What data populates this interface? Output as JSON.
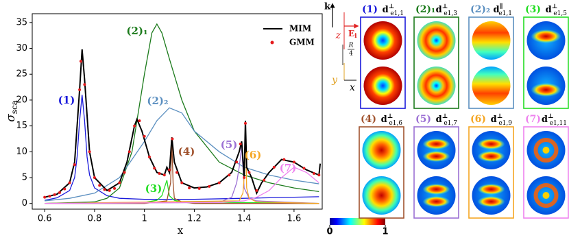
{
  "chart_data": {
    "type": "line",
    "xlabel": "x",
    "ylabel": {
      "symbol": "σ",
      "sub": "sca"
    },
    "xlim": [
      0.55,
      1.713
    ],
    "ylim": [
      -1.1,
      36.7
    ],
    "xticks": [
      0.6,
      0.8,
      1.0,
      1.2,
      1.4,
      1.6
    ],
    "yticks": [
      0,
      5,
      10,
      15,
      20,
      25,
      30,
      35
    ],
    "legend": "upper right",
    "series": [
      {
        "name": "(1)",
        "color": "#1a1adb",
        "mode": "lines",
        "x": [
          0.6,
          0.65,
          0.7,
          0.72,
          0.73,
          0.74,
          0.75,
          0.76,
          0.77,
          0.78,
          0.8,
          0.85,
          0.9,
          1.0,
          1.1,
          1.2,
          1.4,
          1.7
        ],
        "values": [
          0.6,
          1.1,
          2.5,
          5,
          9,
          16,
          21,
          16,
          9,
          5.5,
          3,
          1.5,
          1,
          0.8,
          0.8,
          0.8,
          1,
          1.3
        ]
      },
      {
        "name": "(2)₁",
        "color": "#1b7a1b",
        "mode": "lines",
        "x": [
          0.6,
          0.8,
          0.85,
          0.9,
          0.95,
          1.0,
          1.03,
          1.05,
          1.07,
          1.1,
          1.15,
          1.2,
          1.3,
          1.4,
          1.5,
          1.6,
          1.7
        ],
        "values": [
          0,
          0.3,
          1,
          3,
          10,
          25,
          33,
          34.7,
          33,
          28,
          20,
          14,
          8,
          5.5,
          4,
          3,
          2.3
        ]
      },
      {
        "name": "(2)₂",
        "color": "#5b8fc0",
        "mode": "lines",
        "x": [
          0.6,
          0.7,
          0.8,
          0.9,
          1.0,
          1.05,
          1.1,
          1.15,
          1.2,
          1.3,
          1.4,
          1.5,
          1.6,
          1.7
        ],
        "values": [
          0.5,
          1,
          2,
          5,
          12,
          16,
          18.5,
          17.5,
          14,
          10,
          7,
          5.5,
          4.5,
          3.8
        ]
      },
      {
        "name": "(3)",
        "color": "#22dd22",
        "mode": "lines",
        "x": [
          0.6,
          1.0,
          1.05,
          1.07,
          1.09,
          1.1,
          1.12,
          1.15,
          1.7
        ],
        "values": [
          0,
          0.2,
          0.6,
          1.5,
          4.5,
          1.5,
          0.6,
          0.3,
          0
        ]
      },
      {
        "name": "(4)",
        "color": "#a0522d",
        "mode": "lines",
        "x": [
          0.6,
          1.0,
          1.09,
          1.105,
          1.11,
          1.115,
          1.12,
          1.15,
          1.2,
          1.7
        ],
        "values": [
          0,
          0,
          0.5,
          4,
          12,
          4,
          1,
          0.3,
          0,
          0
        ]
      },
      {
        "name": "(5)",
        "color": "#9b6fd4",
        "mode": "lines",
        "x": [
          0.6,
          1.3,
          1.35,
          1.37,
          1.38,
          1.39,
          1.4,
          1.42,
          1.45,
          1.7
        ],
        "values": [
          0,
          0.2,
          1.2,
          4,
          7,
          11,
          3,
          1,
          0.5,
          0
        ]
      },
      {
        "name": "(6)",
        "color": "#f5a623",
        "mode": "lines",
        "x": [
          0.6,
          1.38,
          1.395,
          1.4,
          1.405,
          1.41,
          1.42,
          1.45,
          1.7
        ],
        "values": [
          0,
          0.5,
          2,
          5,
          15.5,
          3,
          1,
          0.3,
          0
        ]
      },
      {
        "name": "(7)",
        "color": "#ee82ee",
        "mode": "lines",
        "x": [
          0.6,
          1.3,
          1.4,
          1.45,
          1.5,
          1.55,
          1.6,
          1.65,
          1.7
        ],
        "values": [
          0,
          0.2,
          0.5,
          1.2,
          2.5,
          5,
          7,
          6,
          4
        ]
      },
      {
        "name": "MIM",
        "color": "#000000",
        "mode": "lines",
        "x": [
          0.6,
          0.65,
          0.7,
          0.72,
          0.74,
          0.75,
          0.76,
          0.78,
          0.8,
          0.85,
          0.9,
          0.93,
          0.96,
          0.97,
          0.99,
          1.02,
          1.05,
          1.08,
          1.09,
          1.1,
          1.11,
          1.12,
          1.15,
          1.2,
          1.25,
          1.3,
          1.35,
          1.38,
          1.39,
          1.4,
          1.405,
          1.41,
          1.43,
          1.45,
          1.47,
          1.5,
          1.55,
          1.6,
          1.65,
          1.7,
          1.705
        ],
        "values": [
          1.2,
          1.8,
          4,
          8,
          22,
          29.8,
          24,
          10,
          5,
          2.5,
          4,
          8,
          15,
          16.3,
          14,
          9,
          6,
          5.5,
          7,
          6,
          12.8,
          8,
          4,
          3,
          3.2,
          4,
          6,
          10,
          12,
          5,
          16,
          7,
          5,
          2,
          4,
          6,
          8.5,
          8,
          6.5,
          5.5,
          7.7
        ]
      },
      {
        "name": "GMM",
        "color": "#e41a1c",
        "mode": "markers",
        "x": [
          0.6,
          0.62,
          0.64,
          0.66,
          0.68,
          0.7,
          0.72,
          0.74,
          0.745,
          0.76,
          0.78,
          0.8,
          0.82,
          0.84,
          0.86,
          0.88,
          0.9,
          0.92,
          0.94,
          0.96,
          0.98,
          1.0,
          1.02,
          1.04,
          1.06,
          1.08,
          1.1,
          1.112,
          1.13,
          1.15,
          1.18,
          1.22,
          1.26,
          1.3,
          1.34,
          1.37,
          1.385,
          1.4,
          1.405,
          1.42,
          1.45,
          1.48,
          1.52,
          1.56,
          1.6,
          1.64,
          1.68,
          1.7
        ],
        "values": [
          1.2,
          1.4,
          1.7,
          2.1,
          2.8,
          4,
          7.5,
          22,
          27.5,
          23,
          10,
          5,
          3.5,
          2.7,
          2.5,
          2.9,
          4,
          6,
          10,
          15,
          16,
          13,
          9,
          6.8,
          5.8,
          5.5,
          6.5,
          12.5,
          6,
          4,
          3,
          2.9,
          3.3,
          4,
          5.5,
          8,
          11.5,
          5,
          15.5,
          6,
          2.5,
          4.5,
          7,
          8.5,
          8,
          6.8,
          5.8,
          5.5
        ]
      }
    ]
  },
  "axes_sketch": {
    "k": "k",
    "E": "E",
    "E_sub": "i",
    "z": "z",
    "R": "R",
    "four": "4",
    "y": "y",
    "x": "x"
  },
  "panels": [
    {
      "label": "(1)",
      "d": "d",
      "sup": "⊥",
      "sub": "e1,1",
      "color": "#1a1adb"
    },
    {
      "label": "(2)₁",
      "d": "d",
      "sup": "⊥",
      "sub": "e1,3",
      "color": "#1b7a1b"
    },
    {
      "label": "(2)₂",
      "d": "d",
      "sup": "∥",
      "sub": "e1,1",
      "color": "#5b8fc0"
    },
    {
      "label": "(3)",
      "d": "d",
      "sup": "⊥",
      "sub": "e1,5",
      "color": "#22dd22"
    },
    {
      "label": "(4)",
      "d": "d",
      "sup": "⊥",
      "sub": "e1,6",
      "color": "#a0522d"
    },
    {
      "label": "(5)",
      "d": "d",
      "sup": "⊥",
      "sub": "e1,7",
      "color": "#9b6fd4"
    },
    {
      "label": "(6)",
      "d": "d",
      "sup": "⊥",
      "sub": "e1,9",
      "color": "#f5a623"
    },
    {
      "label": "(7)",
      "d": "d",
      "sup": "⊥",
      "sub": "e1,11",
      "color": "#ee82ee"
    }
  ],
  "colorbar": {
    "ticks": [
      0,
      1
    ]
  }
}
